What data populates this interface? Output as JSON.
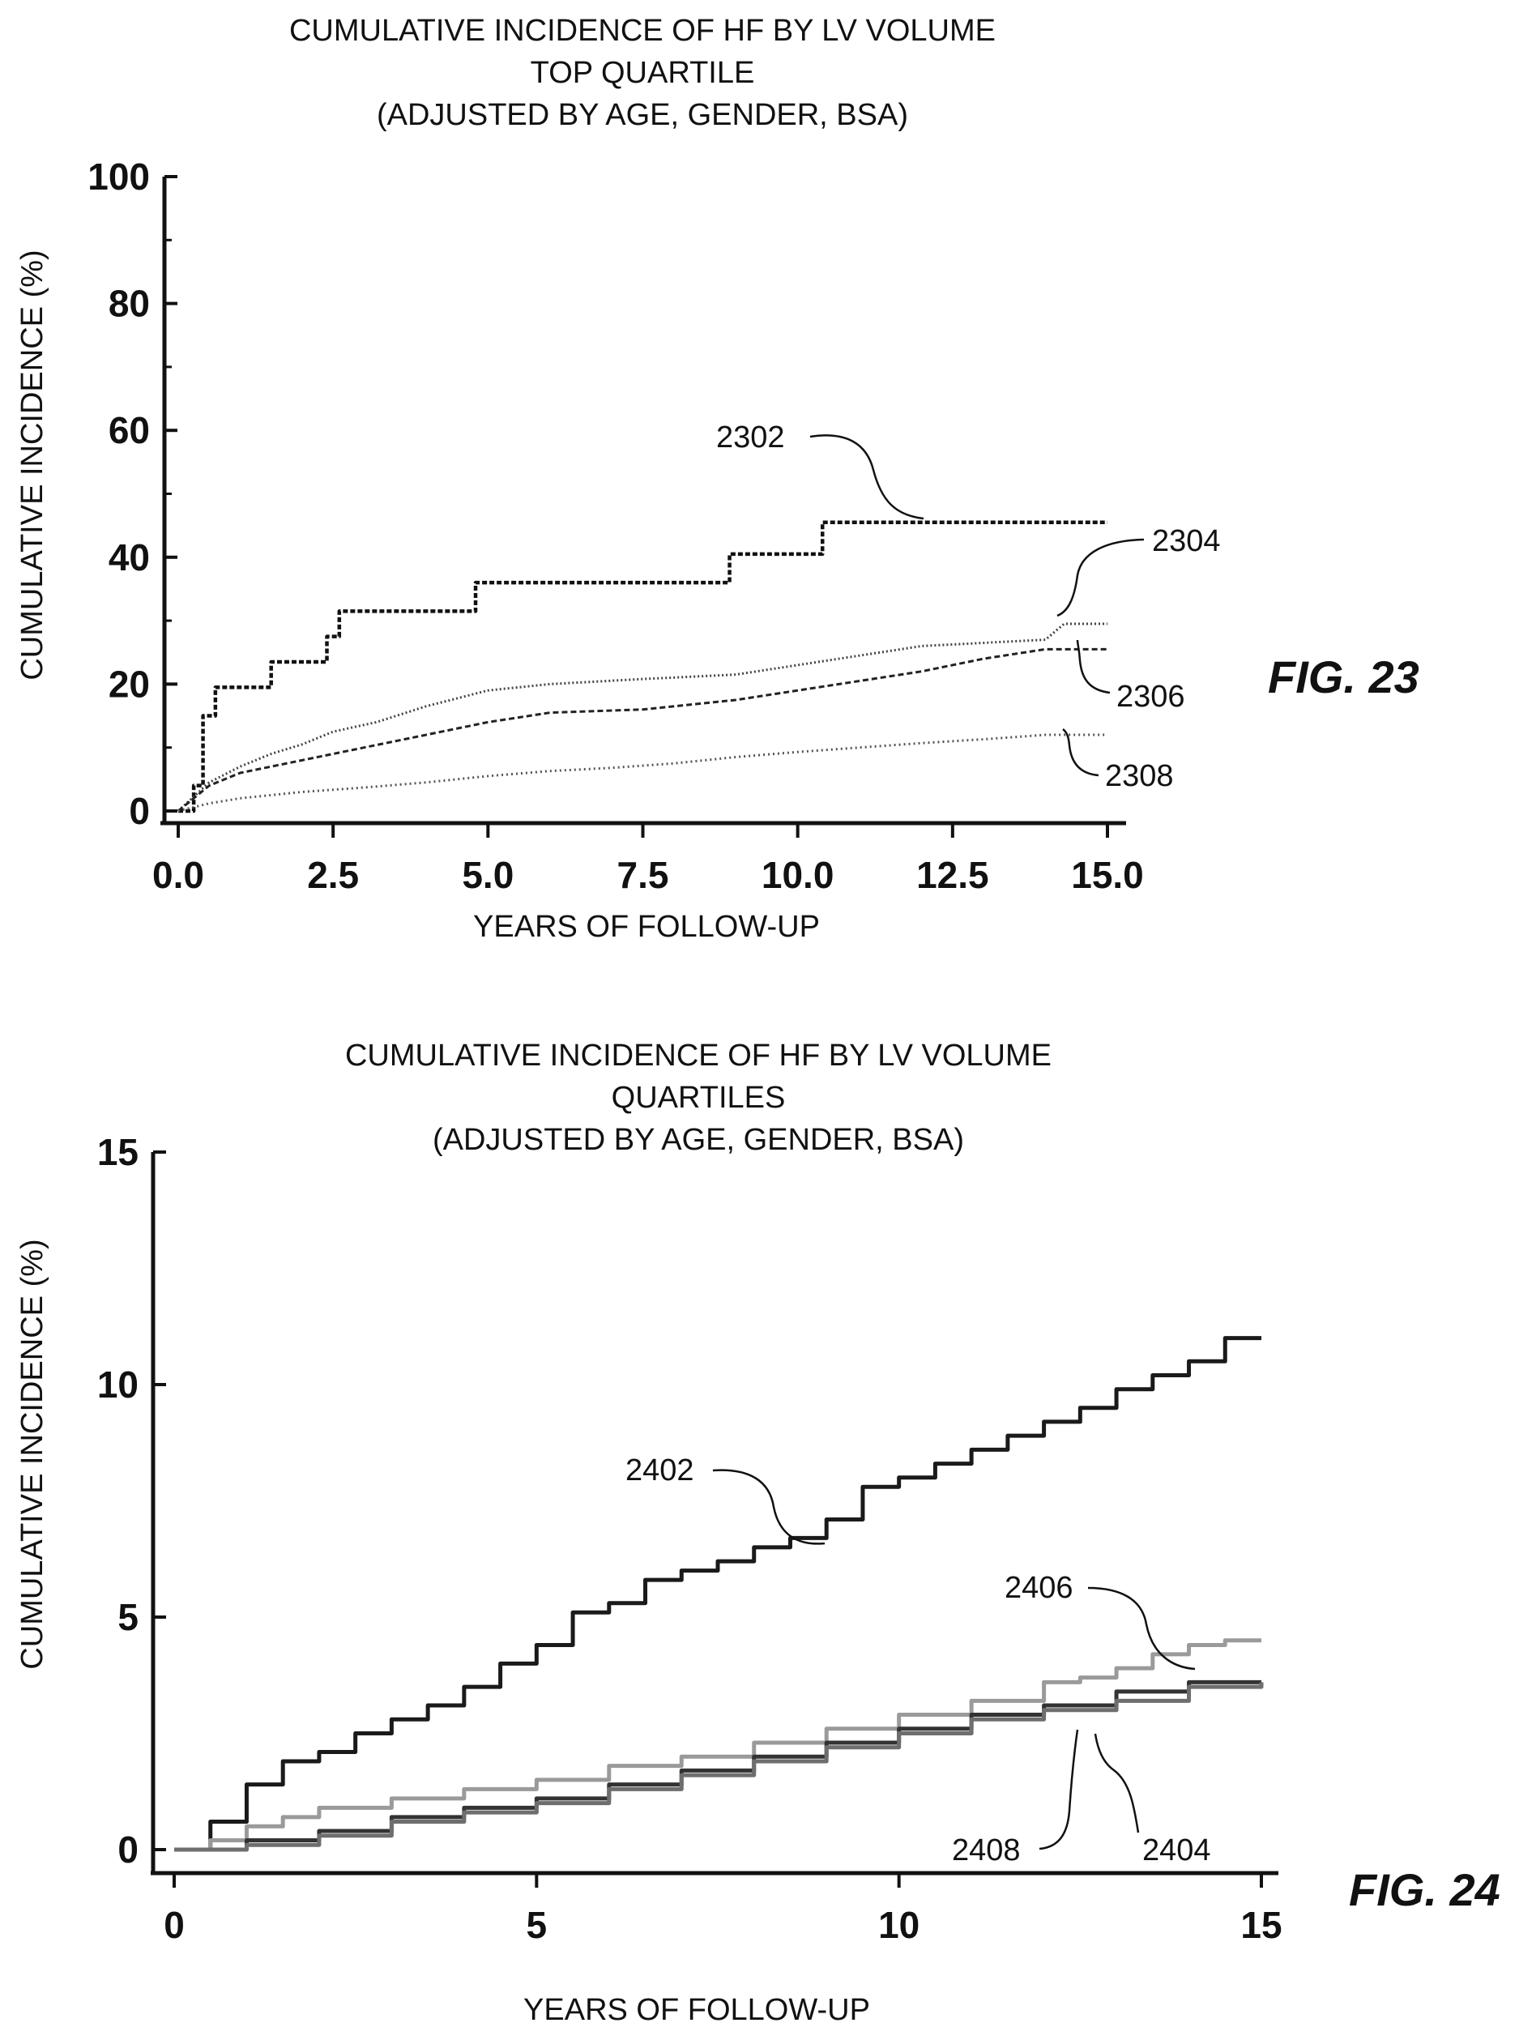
{
  "charts": [
    {
      "id": "fig23",
      "title_lines": [
        "CUMULATIVE INCIDENCE OF HF BY LV VOLUME",
        "TOP QUARTILE",
        "(ADJUSTED BY AGE, GENDER, BSA)"
      ],
      "fig_label": "FIG. 23",
      "xlabel": "YEARS OF FOLLOW-UP",
      "ylabel": "CUMULATIVE INCIDENCE (%)"
    },
    {
      "id": "fig24",
      "title_lines": [
        "CUMULATIVE INCIDENCE OF HF BY LV VOLUME",
        "QUARTILES",
        "(ADJUSTED BY AGE, GENDER, BSA)"
      ],
      "fig_label": "FIG. 24",
      "xlabel": "YEARS OF FOLLOW-UP",
      "ylabel": "CUMULATIVE INCIDENCE (%)"
    }
  ],
  "chart_data": [
    {
      "type": "line",
      "title": "CUMULATIVE INCIDENCE OF HF BY LV VOLUME TOP QUARTILE (ADJUSTED BY AGE, GENDER, BSA)",
      "xlabel": "YEARS OF FOLLOW-UP",
      "ylabel": "CUMULATIVE INCIDENCE (%)",
      "xlim": [
        0,
        15
      ],
      "ylim": [
        0,
        100
      ],
      "xticks": [
        "0.0",
        "2.5",
        "5.0",
        "7.5",
        "10.0",
        "12.5",
        "15.0"
      ],
      "xtick_values": [
        0,
        2.5,
        5,
        7.5,
        10,
        12.5,
        15
      ],
      "yticks": [
        "0",
        "20",
        "40",
        "60",
        "80",
        "100"
      ],
      "ytick_values": [
        0,
        20,
        40,
        60,
        80,
        100
      ],
      "grid": false,
      "series": [
        {
          "name": "2302",
          "style": "step",
          "color": "#111111",
          "dash": "6,3",
          "width": 4.5,
          "x": [
            0,
            0.25,
            0.4,
            0.6,
            1.5,
            2.4,
            2.6,
            4.8,
            8.9,
            10.4,
            15
          ],
          "y": [
            0,
            4,
            15,
            19.5,
            23.5,
            27.5,
            31.5,
            36,
            40.5,
            45.5,
            45.5
          ]
        },
        {
          "name": "2304",
          "style": "line",
          "color": "#444444",
          "dash": "2,3",
          "width": 3,
          "x": [
            0,
            0.5,
            1,
            1.5,
            2,
            2.5,
            3.2,
            4,
            5,
            6,
            7.5,
            9,
            10,
            11,
            12,
            13,
            14,
            14.3,
            15
          ],
          "y": [
            0,
            4.5,
            7,
            9,
            10.5,
            12.5,
            14,
            16.5,
            19,
            20,
            20.8,
            21.5,
            23,
            24.5,
            26,
            26.5,
            27,
            29.5,
            29.5
          ]
        },
        {
          "name": "2306",
          "style": "line",
          "color": "#222222",
          "dash": "7,4",
          "width": 3,
          "x": [
            0,
            0.5,
            1,
            2,
            2.5,
            3,
            4,
            5,
            6,
            7.5,
            9,
            10,
            11,
            12,
            13,
            14,
            15
          ],
          "y": [
            0,
            4,
            6,
            8,
            9,
            10,
            12,
            14,
            15.5,
            16,
            17.5,
            19,
            20.5,
            22,
            24,
            25.5,
            25.5
          ]
        },
        {
          "name": "2308",
          "style": "line",
          "color": "#555555",
          "dash": "2,4",
          "width": 3,
          "x": [
            0,
            0.5,
            1,
            2,
            3,
            4,
            5,
            6,
            7,
            8,
            9,
            10,
            11,
            12,
            13,
            14,
            15
          ],
          "y": [
            0,
            1.2,
            2,
            3,
            3.7,
            4.5,
            5.5,
            6.3,
            6.8,
            7.5,
            8.5,
            9.3,
            10,
            10.7,
            11.3,
            12,
            12
          ]
        }
      ],
      "annotations": [
        "2302",
        "2304",
        "2306",
        "2308"
      ]
    },
    {
      "type": "line",
      "title": "CUMULATIVE INCIDENCE OF HF BY LV VOLUME QUARTILES (ADJUSTED BY AGE, GENDER, BSA)",
      "xlabel": "YEARS OF FOLLOW-UP",
      "ylabel": "CUMULATIVE INCIDENCE (%)",
      "xlim": [
        0,
        15
      ],
      "ylim": [
        0,
        15
      ],
      "xticks": [
        "0",
        "5",
        "10",
        "15"
      ],
      "xtick_values": [
        0,
        5,
        10,
        15
      ],
      "yticks": [
        "0",
        "5",
        "10",
        "15"
      ],
      "ytick_values": [
        0,
        5,
        10,
        15
      ],
      "grid": false,
      "series": [
        {
          "name": "2402",
          "style": "step",
          "color": "#1a1a1a",
          "dash": "",
          "width": 5,
          "x": [
            0,
            0.5,
            1,
            1.5,
            2,
            2.5,
            3,
            3.5,
            4,
            4.5,
            5,
            5.5,
            6,
            6.5,
            7,
            7.5,
            8,
            8.5,
            9,
            9.5,
            10,
            10.5,
            11,
            11.5,
            12,
            12.5,
            13,
            13.5,
            14,
            14.5,
            15
          ],
          "y": [
            0,
            0.6,
            1.4,
            1.9,
            2.1,
            2.5,
            2.8,
            3.1,
            3.5,
            4.0,
            4.4,
            5.1,
            5.3,
            5.8,
            6.0,
            6.2,
            6.5,
            6.7,
            7.1,
            7.8,
            8.0,
            8.3,
            8.6,
            8.9,
            9.2,
            9.5,
            9.9,
            10.2,
            10.5,
            11.0,
            11.0
          ]
        },
        {
          "name": "2406",
          "style": "step",
          "color": "#9a9a9a",
          "dash": "",
          "width": 5,
          "x": [
            0,
            0.5,
            1,
            1.5,
            2,
            3,
            4,
            5,
            6,
            7,
            8,
            9,
            10,
            11,
            12,
            12.5,
            13,
            13.5,
            14,
            14.5,
            15
          ],
          "y": [
            0,
            0.2,
            0.5,
            0.7,
            0.9,
            1.1,
            1.3,
            1.5,
            1.8,
            2.0,
            2.3,
            2.6,
            2.9,
            3.2,
            3.6,
            3.7,
            3.9,
            4.2,
            4.4,
            4.5,
            4.5
          ]
        },
        {
          "name": "2408",
          "style": "step",
          "color": "#333333",
          "dash": "",
          "width": 5,
          "x": [
            0,
            1,
            2,
            3,
            4,
            5,
            6,
            7,
            8,
            9,
            10,
            11,
            12,
            13,
            14,
            15
          ],
          "y": [
            0,
            0.2,
            0.4,
            0.7,
            0.9,
            1.1,
            1.4,
            1.7,
            2.0,
            2.3,
            2.6,
            2.9,
            3.1,
            3.4,
            3.6,
            3.6
          ]
        },
        {
          "name": "2404",
          "style": "step",
          "color": "#6e6e6e",
          "dash": "",
          "width": 5,
          "x": [
            0,
            1,
            2,
            3,
            4,
            5,
            6,
            7,
            8,
            9,
            10,
            11,
            12,
            13,
            14,
            15
          ],
          "y": [
            0,
            0.1,
            0.3,
            0.6,
            0.8,
            1.0,
            1.3,
            1.6,
            1.9,
            2.2,
            2.5,
            2.8,
            3.0,
            3.2,
            3.5,
            3.6
          ]
        }
      ],
      "annotations": [
        "2402",
        "2406",
        "2408",
        "2404"
      ]
    }
  ]
}
